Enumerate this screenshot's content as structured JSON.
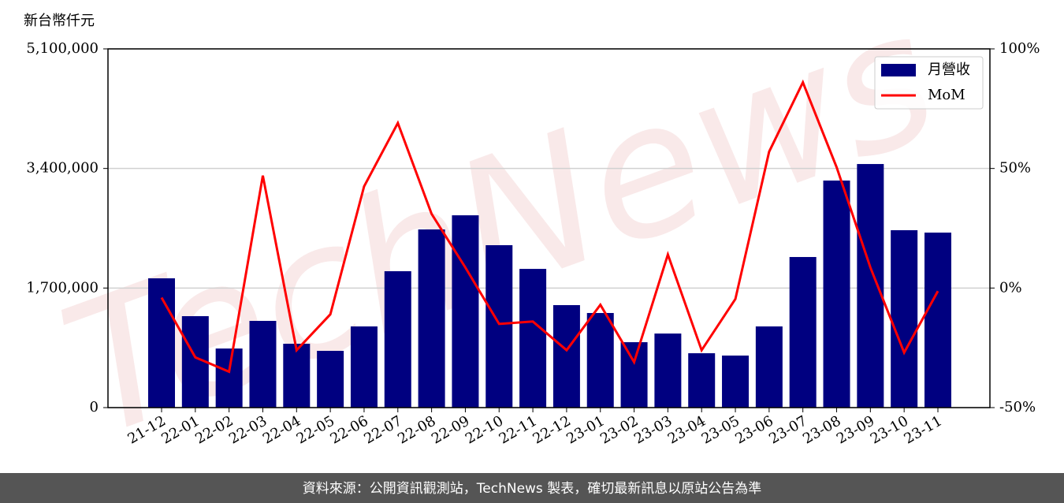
{
  "chart_data": {
    "type": "bar",
    "y_label": "新台幣仟元",
    "watermark": "TechNews",
    "categories": [
      "21-12",
      "22-01",
      "22-02",
      "22-03",
      "22-04",
      "22-05",
      "22-06",
      "22-07",
      "22-08",
      "22-09",
      "22-10",
      "22-11",
      "22-12",
      "23-01",
      "23-02",
      "23-03",
      "23-04",
      "23-05",
      "23-06",
      "23-07",
      "23-08",
      "23-09",
      "23-10",
      "23-11"
    ],
    "series": [
      {
        "name": "月營收",
        "type": "bar",
        "color": "#000080",
        "values": [
          1838000,
          1300000,
          840000,
          1233000,
          908000,
          807000,
          1154000,
          1939000,
          2533000,
          2734000,
          2309000,
          1972000,
          1457000,
          1345000,
          930000,
          1053000,
          773000,
          740000,
          1154000,
          2141000,
          3228000,
          3463000,
          2522000,
          2488000
        ]
      },
      {
        "name": "MoM",
        "type": "line",
        "axis": "y2",
        "color": "#ff0000",
        "values": [
          -4,
          -29,
          -35,
          47,
          -26,
          -11,
          42.5,
          69,
          31,
          8.6,
          -15,
          -14,
          -26,
          -7,
          -31,
          14,
          -26,
          -4.6,
          57,
          86,
          50.5,
          8.6,
          -27,
          -1.3
        ]
      }
    ],
    "ylim": [
      0,
      5100000
    ],
    "yticks": [
      0,
      {
        "value": 1700000,
        "label": "1,700,000"
      },
      {
        "value": 3400000,
        "label": "3,400,000"
      },
      {
        "value": 5100000,
        "label": "5,100,000"
      }
    ],
    "y2lim": [
      -50,
      100
    ],
    "y2ticks": [
      {
        "value": -50,
        "label": "-50%"
      },
      {
        "value": 0,
        "label": "0%"
      },
      {
        "value": 50,
        "label": "50%"
      },
      {
        "value": 100,
        "label": "100%"
      }
    ],
    "grid": true,
    "legend": "upper right"
  },
  "footer": "資料來源：公開資訊觀測站，TechNews 製表，確切最新訊息以原站公告為準"
}
